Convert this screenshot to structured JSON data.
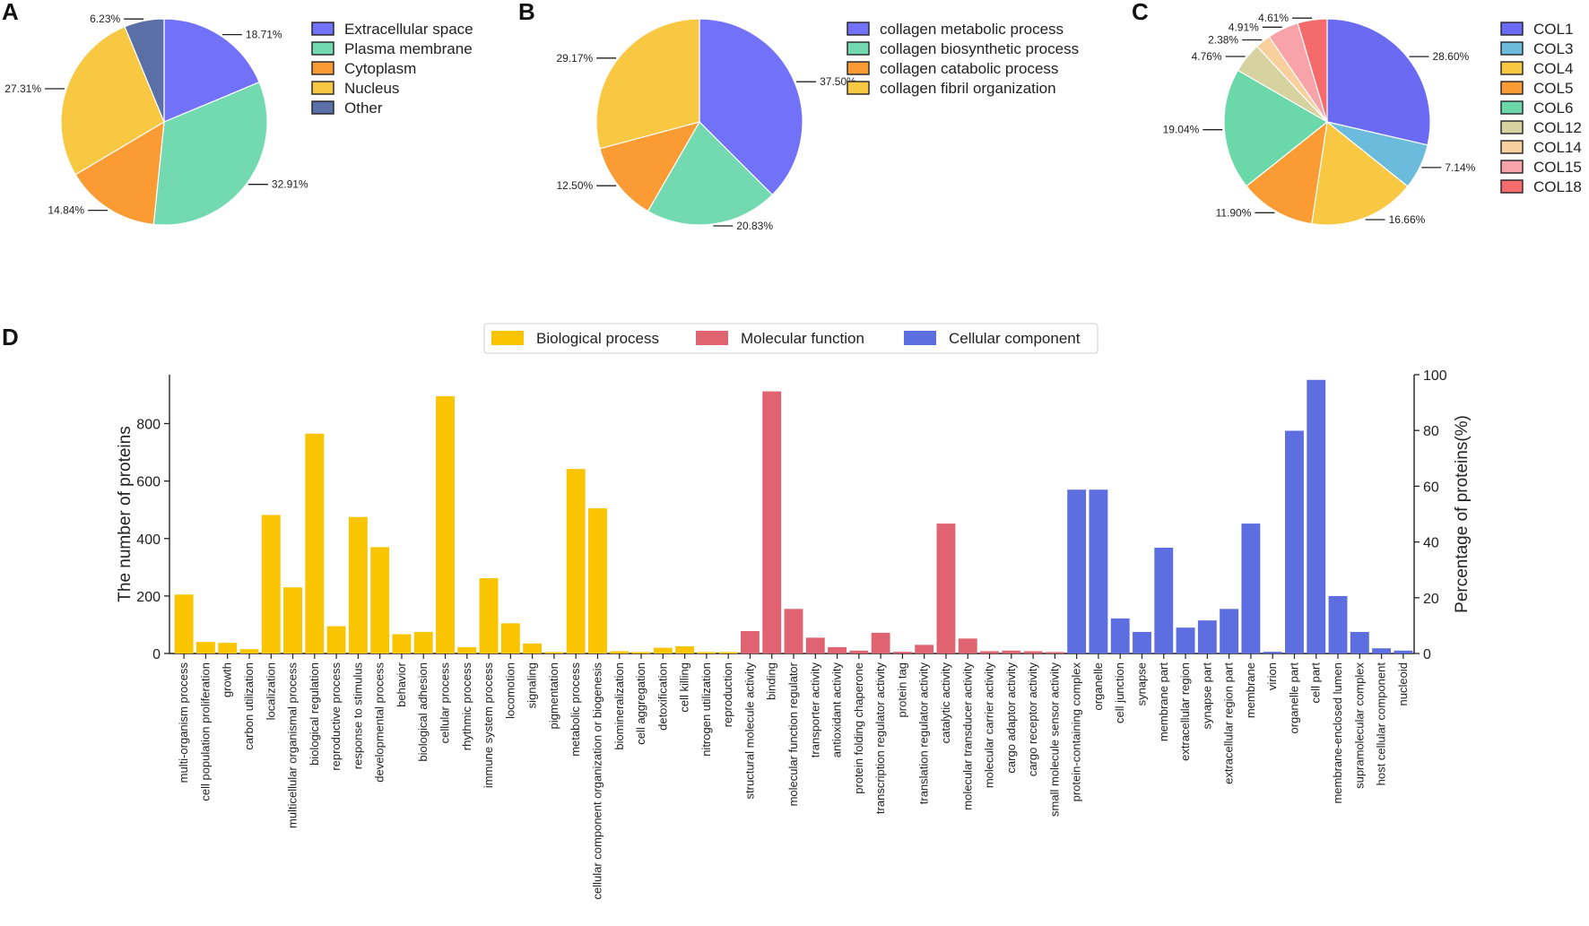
{
  "chart_data": [
    {
      "type": "pie",
      "panel_label": "A",
      "title": "",
      "labels": [
        "Extracellular space",
        "Plasma membrane",
        "Cytoplasm",
        "Nucleus",
        "Other"
      ],
      "values": [
        18.71,
        32.91,
        14.84,
        27.31,
        6.23
      ],
      "value_labels": [
        "18.71%",
        "32.91%",
        "14.84%",
        "27.31%",
        "6.23%"
      ],
      "colors": [
        "#7272f8",
        "#72d9b1",
        "#fb9b34",
        "#f9c843",
        "#5a6fa6"
      ],
      "legend": "right"
    },
    {
      "type": "pie",
      "panel_label": "B",
      "title": "",
      "labels": [
        "collagen metabolic process",
        "collagen biosynthetic process",
        "collagen catabolic process",
        "collagen fibril organization"
      ],
      "values": [
        37.5,
        20.83,
        12.5,
        29.17
      ],
      "value_labels": [
        "37.50%",
        "20.83%",
        "12.50%",
        "29.17%"
      ],
      "colors": [
        "#7272f8",
        "#72d9b1",
        "#fb9b34",
        "#f9c843"
      ],
      "legend": "right"
    },
    {
      "type": "pie",
      "panel_label": "C",
      "title": "",
      "labels": [
        "COL1",
        "COL3",
        "COL4",
        "COL5",
        "COL6",
        "COL12",
        "COL14",
        "COL15",
        "COL18"
      ],
      "values": [
        28.6,
        7.14,
        16.66,
        11.9,
        19.04,
        4.76,
        2.38,
        4.91,
        4.61
      ],
      "value_labels": [
        "28.60%",
        "7.14%",
        "16.66%",
        "11.90%",
        "19.04%",
        "4.76%",
        "2.38%",
        "4.91%",
        "4.61%"
      ],
      "colors": [
        "#6a6af2",
        "#6bbcdc",
        "#f9c843",
        "#fb9b34",
        "#6ad8a8",
        "#d6d3a0",
        "#f8cf9d",
        "#f8a3aa",
        "#f56b6b"
      ],
      "legend": "right"
    },
    {
      "type": "bar",
      "panel_label": "D",
      "title": "",
      "xlabel": "",
      "ylabel": "The number of proteins",
      "y2label": "Percentage of proteins(%)",
      "ylim": [
        0,
        970
      ],
      "yticks": [
        0,
        200,
        400,
        600,
        800
      ],
      "y2lim": [
        0,
        100
      ],
      "y2ticks": [
        0,
        20,
        40,
        60,
        80,
        100
      ],
      "legend": "top-center",
      "series": [
        {
          "name": "Biological process",
          "color": "#fbc400",
          "categories": [
            "multi-organism process",
            "cell population proliferation",
            "growth",
            "carbon utilization",
            "localization",
            "multicellular organismal process",
            "biological regulation",
            "reproductive process",
            "response to stimulus",
            "developmental process",
            "behavior",
            "biological adhesion",
            "cellular process",
            "rhythmic process",
            "immune system process",
            "locomotion",
            "signaling",
            "pigmentation",
            "metabolic process",
            "cellular component organization or biogenesis",
            "biomineralization",
            "cell aggregation",
            "detoxification",
            "cell killing",
            "nitrogen utilization",
            "reproduction"
          ],
          "values": [
            205,
            40,
            37,
            15,
            482,
            230,
            765,
            95,
            475,
            370,
            67,
            75,
            895,
            22,
            262,
            105,
            35,
            5,
            642,
            505,
            8,
            5,
            20,
            25,
            5,
            5
          ]
        },
        {
          "name": "Molecular function",
          "color": "#e06371",
          "categories": [
            "structural molecule activity",
            "binding",
            "molecular function regulator",
            "transporter activity",
            "antioxidant activity",
            "protein folding chaperone",
            "transcription regulator activity",
            "protein tag",
            "translation regulator activity",
            "catalytic activity",
            "molecular transducer activity",
            "molecular carrier activity",
            "cargo adaptor activity",
            "cargo receptor activity",
            "small molecule sensor activity"
          ],
          "values": [
            78,
            912,
            155,
            55,
            22,
            10,
            72,
            6,
            30,
            452,
            52,
            8,
            10,
            8,
            5
          ]
        },
        {
          "name": "Cellular component",
          "color": "#5c6ee0",
          "categories": [
            "protein-containing complex",
            "organelle",
            "cell junction",
            "synapse",
            "membrane part",
            "extracellular region",
            "synapse part",
            "extracellular region part",
            "membrane",
            "virion",
            "organelle part",
            "cell part",
            "membrane-enclosed lumen",
            "supramolecular complex",
            "host cellular component",
            "nucleoid"
          ],
          "values": [
            570,
            570,
            122,
            75,
            368,
            90,
            115,
            155,
            452,
            6,
            775,
            952,
            200,
            75,
            18,
            10
          ]
        }
      ]
    }
  ]
}
